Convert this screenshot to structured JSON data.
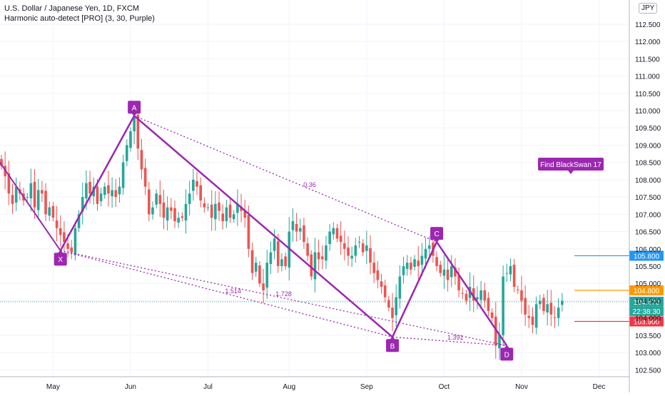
{
  "chart_data": {
    "type": "candlestick",
    "symbol_title": "U.S. Dollar / Japanese Yen, 1D, FXCM",
    "indicator_title": "Harmonic auto-detect [PRO] (3, 30, Purple)",
    "currency": "JPY",
    "ylim": [
      102.3,
      113.2
    ],
    "y_ticks": [
      "102.500",
      "103.000",
      "103.500",
      "104.000",
      "104.500",
      "105.000",
      "105.500",
      "106.000",
      "106.500",
      "107.000",
      "107.500",
      "108.000",
      "108.500",
      "109.000",
      "109.500",
      "110.000",
      "110.500",
      "111.000",
      "111.500",
      "112.000",
      "112.500"
    ],
    "x_ticks": [
      "May",
      "Jun",
      "Jul",
      "Aug",
      "Sep",
      "Oct",
      "Nov",
      "Dec"
    ],
    "closes": [
      108.4,
      108.1,
      107.6,
      107.3,
      107.8,
      107.6,
      107.4,
      107.5,
      107.9,
      107.2,
      107.7,
      107.6,
      107.0,
      107.2,
      106.9,
      106.6,
      106.4,
      106.2,
      106.0,
      105.9,
      106.6,
      107.0,
      107.5,
      107.9,
      107.6,
      107.8,
      107.3,
      107.6,
      107.8,
      107.6,
      107.7,
      107.5,
      107.8,
      108.5,
      109.0,
      109.4,
      109.8,
      108.9,
      108.3,
      107.8,
      107.0,
      107.2,
      107.6,
      107.3,
      106.9,
      107.2,
      107.1,
      106.8,
      106.9,
      106.9,
      107.3,
      107.6,
      108.0,
      107.8,
      107.4,
      107.2,
      107.2,
      106.9,
      107.3,
      107.1,
      106.8,
      107.2,
      106.9,
      107.0,
      107.3,
      107.1,
      106.9,
      106.0,
      105.3,
      105.6,
      105.0,
      104.8,
      105.6,
      105.9,
      106.3,
      105.5,
      105.7,
      105.5,
      106.5,
      106.8,
      106.5,
      106.6,
      106.2,
      105.8,
      105.2,
      105.9,
      105.7,
      105.7,
      106.1,
      106.5,
      106.6,
      106.3,
      106.2,
      106.0,
      105.8,
      105.8,
      106.1,
      106.2,
      105.9,
      106.1,
      105.6,
      105.3,
      105.1,
      104.9,
      104.6,
      104.3,
      104.0,
      104.6,
      105.2,
      105.5,
      105.6,
      105.4,
      105.7,
      105.5,
      105.8,
      106.0,
      106.1,
      105.8,
      105.5,
      105.3,
      105.4,
      105.1,
      105.5,
      105.2,
      104.8,
      104.7,
      104.5,
      104.9,
      104.5,
      104.6,
      104.8,
      104.5,
      104.2,
      104.0,
      103.2,
      103.5,
      105.2,
      105.3,
      105.5,
      104.9,
      104.8,
      104.5,
      104.1,
      104.0,
      103.8,
      104.4,
      104.5,
      104.2,
      104.4,
      104.1,
      104.0,
      104.3,
      104.5
    ],
    "patterns": [
      {
        "label": "X",
        "value": 105.95
      },
      {
        "label": "A",
        "value": 109.85
      },
      {
        "label": "B",
        "value": 103.45
      },
      {
        "label": "C",
        "value": 106.2
      },
      {
        "label": "D",
        "value": 103.2
      }
    ],
    "ratio_labels": [
      "0.36",
      "1.514",
      "1.728",
      "1.391"
    ],
    "callout": "Find BlackSwan 17",
    "price_levels": [
      {
        "label": "105.800",
        "value": 105.8,
        "color": "#2196f3"
      },
      {
        "label": "104.800",
        "value": 104.8,
        "color": "#ff9800"
      },
      {
        "label": "104.470",
        "value": 104.47,
        "color": "#26a69a"
      },
      {
        "label": "103.900",
        "value": 103.9,
        "color": "#f23645"
      }
    ],
    "countdown": "22:38:30",
    "colors": {
      "up": "#26a69a",
      "down": "#ef5350",
      "pattern": "#9c27b0",
      "grid": "#f0f3fa"
    }
  }
}
